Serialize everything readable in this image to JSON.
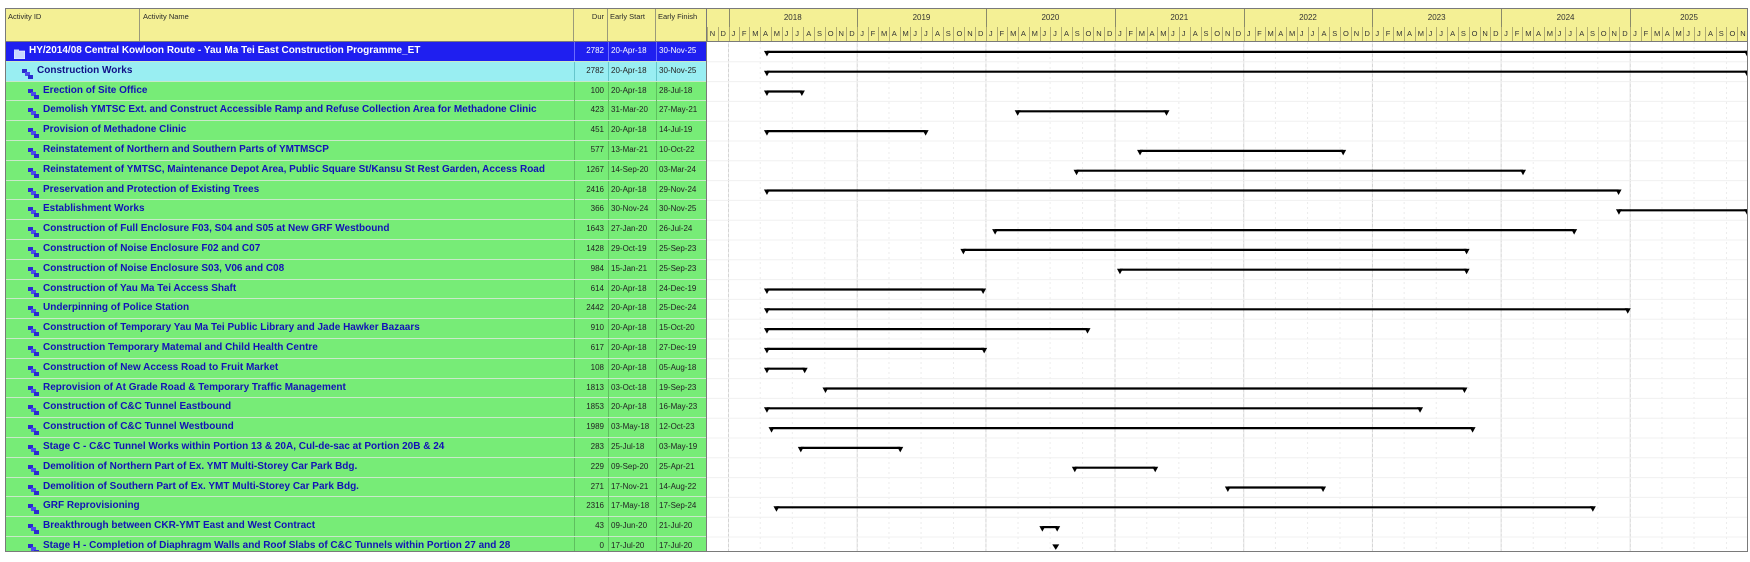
{
  "columns": {
    "activity_id": "Activity ID",
    "activity_name": "Activity Name",
    "duration": "Dur",
    "early_start": "Early Start",
    "early_finish": "Early Finish"
  },
  "timeline": {
    "years": [
      "2018",
      "2019",
      "2020",
      "2021",
      "2022",
      "2023",
      "2024",
      "2025"
    ],
    "months": [
      "N",
      "D",
      "J",
      "F",
      "M",
      "A",
      "M",
      "J",
      "J",
      "A",
      "S",
      "O",
      "N",
      "D",
      "J",
      "F",
      "M",
      "A",
      "M",
      "J",
      "J",
      "A",
      "S",
      "O",
      "N",
      "D",
      "J",
      "F",
      "M",
      "A",
      "M",
      "J",
      "J",
      "A",
      "S",
      "O",
      "N",
      "D",
      "J",
      "F",
      "M",
      "A",
      "M",
      "J",
      "J",
      "A",
      "S",
      "O",
      "N",
      "D",
      "J",
      "F",
      "M",
      "A",
      "M",
      "J",
      "J",
      "A",
      "S",
      "O",
      "N",
      "D",
      "J",
      "F",
      "M",
      "A",
      "M",
      "J",
      "J",
      "A",
      "S",
      "O",
      "N",
      "D",
      "J",
      "F",
      "M",
      "A",
      "M",
      "J",
      "J",
      "A",
      "S",
      "O",
      "N",
      "D",
      "J",
      "F",
      "M",
      "A",
      "M",
      "J",
      "J",
      "A",
      "S",
      "O",
      "N",
      "D",
      "J",
      "F",
      "M",
      "A",
      "M",
      "J",
      "J",
      "A",
      "S",
      "O",
      "N"
    ]
  },
  "activities": [
    {
      "level": "project",
      "name": "HY/2014/08 Central Kowloon Route - Yau Ma Tei East Construction Programme_ET",
      "dur": "2782",
      "start": "20-Apr-18",
      "finish": "30-Nov-25",
      "start_date": "2018-04-20",
      "finish_date": "2025-11-30"
    },
    {
      "level": "wbs",
      "name": "Construction Works",
      "dur": "2782",
      "start": "20-Apr-18",
      "finish": "30-Nov-25",
      "start_date": "2018-04-20",
      "finish_date": "2025-11-30"
    },
    {
      "level": "task",
      "name": "Erection of Site Office",
      "dur": "100",
      "start": "20-Apr-18",
      "finish": "28-Jul-18",
      "start_date": "2018-04-20",
      "finish_date": "2018-07-28"
    },
    {
      "level": "task",
      "name": "Demolish YMTSC Ext. and Construct Accessible Ramp and Refuse Collection Area for Methadone Clinic",
      "dur": "423",
      "start": "31-Mar-20",
      "finish": "27-May-21",
      "start_date": "2020-03-31",
      "finish_date": "2021-05-27"
    },
    {
      "level": "task",
      "name": "Provision of Methadone Clinic",
      "dur": "451",
      "start": "20-Apr-18",
      "finish": "14-Jul-19",
      "start_date": "2018-04-20",
      "finish_date": "2019-07-14"
    },
    {
      "level": "task",
      "name": "Reinstatement of Northern and Southern Parts of YMTMSCP",
      "dur": "577",
      "start": "13-Mar-21",
      "finish": "10-Oct-22",
      "start_date": "2021-03-13",
      "finish_date": "2022-10-10"
    },
    {
      "level": "task",
      "name": "Reinstatement of YMTSC, Maintenance Depot Area, Public Square St/Kansu St Rest Garden, Access Road",
      "dur": "1267",
      "start": "14-Sep-20",
      "finish": "03-Mar-24",
      "start_date": "2020-09-14",
      "finish_date": "2024-03-03"
    },
    {
      "level": "task",
      "name": "Preservation and Protection of Existing Trees",
      "dur": "2416",
      "start": "20-Apr-18",
      "finish": "29-Nov-24",
      "start_date": "2018-04-20",
      "finish_date": "2024-11-29"
    },
    {
      "level": "task",
      "name": "Establishment Works",
      "dur": "366",
      "start": "30-Nov-24",
      "finish": "30-Nov-25",
      "start_date": "2024-11-30",
      "finish_date": "2025-11-30"
    },
    {
      "level": "task",
      "name": "Construction of Full Enclosure F03, S04 and S05 at New GRF Westbound",
      "dur": "1643",
      "start": "27-Jan-20",
      "finish": "26-Jul-24",
      "start_date": "2020-01-27",
      "finish_date": "2024-07-26"
    },
    {
      "level": "task",
      "name": "Construction of Noise Enclosure F02 and C07",
      "dur": "1428",
      "start": "29-Oct-19",
      "finish": "25-Sep-23",
      "start_date": "2019-10-29",
      "finish_date": "2023-09-25"
    },
    {
      "level": "task",
      "name": "Construction of Noise Enclosure S03, V06 and C08",
      "dur": "984",
      "start": "15-Jan-21",
      "finish": "25-Sep-23",
      "start_date": "2021-01-15",
      "finish_date": "2023-09-25"
    },
    {
      "level": "task",
      "name": "Construction of Yau Ma Tei Access Shaft",
      "dur": "614",
      "start": "20-Apr-18",
      "finish": "24-Dec-19",
      "start_date": "2018-04-20",
      "finish_date": "2019-12-24"
    },
    {
      "level": "task",
      "name": "Underpinning of Police Station",
      "dur": "2442",
      "start": "20-Apr-18",
      "finish": "25-Dec-24",
      "start_date": "2018-04-20",
      "finish_date": "2024-12-25"
    },
    {
      "level": "task",
      "name": "Construction of Temporary Yau Ma Tei Public Library and Jade Hawker Bazaars",
      "dur": "910",
      "start": "20-Apr-18",
      "finish": "15-Oct-20",
      "start_date": "2018-04-20",
      "finish_date": "2020-10-15"
    },
    {
      "level": "task",
      "name": "Construction Temporary Matemal and Child Health Centre",
      "dur": "617",
      "start": "20-Apr-18",
      "finish": "27-Dec-19",
      "start_date": "2018-04-20",
      "finish_date": "2019-12-27"
    },
    {
      "level": "task",
      "name": "Construction of New Access Road to Fruit Market",
      "dur": "108",
      "start": "20-Apr-18",
      "finish": "05-Aug-18",
      "start_date": "2018-04-20",
      "finish_date": "2018-08-05"
    },
    {
      "level": "task",
      "name": "Reprovision of At Grade Road & Temporary Traffic Management",
      "dur": "1813",
      "start": "03-Oct-18",
      "finish": "19-Sep-23",
      "start_date": "2018-10-03",
      "finish_date": "2023-09-19"
    },
    {
      "level": "task",
      "name": "Construction of C&C Tunnel Eastbound",
      "dur": "1853",
      "start": "20-Apr-18",
      "finish": "16-May-23",
      "start_date": "2018-04-20",
      "finish_date": "2023-05-16"
    },
    {
      "level": "task",
      "name": "Construction of C&C Tunnel Westbound",
      "dur": "1989",
      "start": "03-May-18",
      "finish": "12-Oct-23",
      "start_date": "2018-05-03",
      "finish_date": "2023-10-12"
    },
    {
      "level": "task",
      "name": "Stage C - C&C Tunnel Works within Portion 13 & 20A, Cul-de-sac at Portion 20B & 24",
      "dur": "283",
      "start": "25-Jul-18",
      "finish": "03-May-19",
      "start_date": "2018-07-25",
      "finish_date": "2019-05-03"
    },
    {
      "level": "task",
      "name": "Demolition of Northern Part of Ex. YMT Multi-Storey Car Park Bdg.",
      "dur": "229",
      "start": "09-Sep-20",
      "finish": "25-Apr-21",
      "start_date": "2020-09-09",
      "finish_date": "2021-04-25"
    },
    {
      "level": "task",
      "name": "Demolition of Southern Part of Ex. YMT Multi-Storey Car Park Bdg.",
      "dur": "271",
      "start": "17-Nov-21",
      "finish": "14-Aug-22",
      "start_date": "2021-11-17",
      "finish_date": "2022-08-14"
    },
    {
      "level": "task",
      "name": "GRF Reprovisioning",
      "dur": "2316",
      "start": "17-May-18",
      "finish": "17-Sep-24",
      "start_date": "2018-05-17",
      "finish_date": "2024-09-17"
    },
    {
      "level": "task",
      "name": "Breakthrough between CKR-YMT East and West Contract",
      "dur": "43",
      "start": "09-Jun-20",
      "finish": "21-Jul-20",
      "start_date": "2020-06-09",
      "finish_date": "2020-07-21"
    },
    {
      "level": "task",
      "name": "Stage H - Completion of Diaphragm Walls and Roof Slabs of C&C Tunnels within Portion 27 and 28",
      "dur": "0",
      "start": "17-Jul-20",
      "finish": "17-Jul-20",
      "start_date": "2020-07-17",
      "finish_date": "2020-07-17"
    }
  ]
}
